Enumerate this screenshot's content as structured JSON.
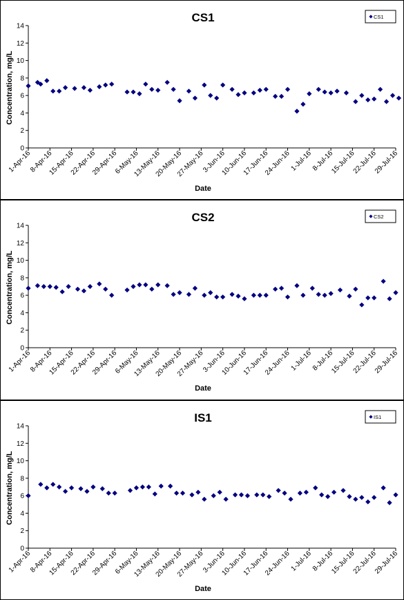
{
  "chart_data": [
    {
      "type": "scatter",
      "title": "CS1",
      "xlabel": "Date",
      "ylabel": "Concentration, mg/L",
      "ylim": [
        0,
        14
      ],
      "yticks": [
        0,
        2,
        4,
        6,
        8,
        10,
        12,
        14
      ],
      "xlim": [
        "1-Apr-16",
        "29-Jul-16"
      ],
      "xtick_labels": [
        "1-Apr-16",
        "8-Apr-16",
        "15-Apr-16",
        "22-Apr-16",
        "29-Apr-16",
        "6-May-16",
        "13-May-16",
        "20-May-16",
        "27-May-16",
        "3-Jun-16",
        "10-Jun-16",
        "17-Jun-16",
        "24-Jun-16",
        "1-Jul-16",
        "8-Jul-16",
        "15-Jul-16",
        "22-Jul-16",
        "29-Jul-16"
      ],
      "grid": false,
      "legend_position": "top-right",
      "series": [
        {
          "name": "CS1",
          "marker": "diamond",
          "color": "#000080",
          "x": [
            "2016-04-01",
            "2016-04-04",
            "2016-04-05",
            "2016-04-07",
            "2016-04-09",
            "2016-04-11",
            "2016-04-13",
            "2016-04-16",
            "2016-04-19",
            "2016-04-21",
            "2016-04-24",
            "2016-04-26",
            "2016-04-28",
            "2016-05-03",
            "2016-05-05",
            "2016-05-07",
            "2016-05-09",
            "2016-05-11",
            "2016-05-13",
            "2016-05-16",
            "2016-05-18",
            "2016-05-20",
            "2016-05-23",
            "2016-05-25",
            "2016-05-28",
            "2016-05-30",
            "2016-06-01",
            "2016-06-03",
            "2016-06-06",
            "2016-06-08",
            "2016-06-10",
            "2016-06-13",
            "2016-06-15",
            "2016-06-17",
            "2016-06-20",
            "2016-06-22",
            "2016-06-24",
            "2016-06-27",
            "2016-06-29",
            "2016-07-01",
            "2016-07-04",
            "2016-07-06",
            "2016-07-08",
            "2016-07-10",
            "2016-07-13",
            "2016-07-16",
            "2016-07-18",
            "2016-07-20",
            "2016-07-22",
            "2016-07-24",
            "2016-07-26",
            "2016-07-28",
            "2016-07-30"
          ],
          "y": [
            7.1,
            7.5,
            7.3,
            7.7,
            6.5,
            6.5,
            6.9,
            6.8,
            6.9,
            6.6,
            7.0,
            7.2,
            7.3,
            6.4,
            6.4,
            6.2,
            7.3,
            6.7,
            6.6,
            7.5,
            6.7,
            5.4,
            6.5,
            5.7,
            7.2,
            6.0,
            5.7,
            7.2,
            6.7,
            6.1,
            6.3,
            6.3,
            6.6,
            6.7,
            5.9,
            5.9,
            6.7,
            4.2,
            5.0,
            6.2,
            6.7,
            6.4,
            6.3,
            6.5,
            6.3,
            5.3,
            6.0,
            5.5,
            5.6,
            6.7,
            5.3,
            6.0,
            5.7
          ]
        }
      ]
    },
    {
      "type": "scatter",
      "title": "CS2",
      "xlabel": "Date",
      "ylabel": "Concentration, mg/L",
      "ylim": [
        0,
        14
      ],
      "yticks": [
        0,
        2,
        4,
        6,
        8,
        10,
        12,
        14
      ],
      "xlim": [
        "1-Apr-16",
        "29-Jul-16"
      ],
      "xtick_labels": [
        "1-Apr-16",
        "8-Apr-16",
        "15-Apr-16",
        "22-Apr-16",
        "29-Apr-16",
        "6-May-16",
        "13-May-16",
        "20-May-16",
        "27-May-16",
        "3-Jun-16",
        "10-Jun-16",
        "17-Jun-16",
        "24-Jun-16",
        "1-Jul-16",
        "8-Jul-16",
        "15-Jul-16",
        "22-Jul-16",
        "29-Jul-16"
      ],
      "grid": false,
      "legend_position": "top-right",
      "series": [
        {
          "name": "CS2",
          "marker": "diamond",
          "color": "#000080",
          "x": [
            "2016-04-01",
            "2016-04-04",
            "2016-04-06",
            "2016-04-08",
            "2016-04-10",
            "2016-04-12",
            "2016-04-14",
            "2016-04-17",
            "2016-04-19",
            "2016-04-21",
            "2016-04-24",
            "2016-04-26",
            "2016-04-28",
            "2016-05-03",
            "2016-05-05",
            "2016-05-07",
            "2016-05-09",
            "2016-05-11",
            "2016-05-13",
            "2016-05-16",
            "2016-05-18",
            "2016-05-20",
            "2016-05-23",
            "2016-05-25",
            "2016-05-28",
            "2016-05-30",
            "2016-06-01",
            "2016-06-03",
            "2016-06-06",
            "2016-06-08",
            "2016-06-10",
            "2016-06-13",
            "2016-06-15",
            "2016-06-17",
            "2016-06-20",
            "2016-06-22",
            "2016-06-24",
            "2016-06-27",
            "2016-06-29",
            "2016-07-02",
            "2016-07-04",
            "2016-07-06",
            "2016-07-08",
            "2016-07-11",
            "2016-07-14",
            "2016-07-16",
            "2016-07-18",
            "2016-07-20",
            "2016-07-22",
            "2016-07-25",
            "2016-07-27",
            "2016-07-29"
          ],
          "y": [
            6.8,
            7.1,
            7.0,
            7.0,
            6.9,
            6.4,
            7.0,
            6.7,
            6.5,
            7.0,
            7.3,
            6.7,
            6.0,
            6.6,
            7.0,
            7.2,
            7.2,
            6.7,
            7.2,
            7.1,
            6.1,
            6.3,
            6.1,
            6.8,
            6.0,
            6.3,
            5.8,
            5.8,
            6.1,
            5.9,
            5.6,
            6.0,
            6.0,
            6.0,
            6.7,
            6.8,
            5.8,
            7.1,
            6.0,
            6.8,
            6.1,
            6.0,
            6.2,
            6.6,
            5.9,
            6.7,
            4.9,
            5.7,
            5.7,
            7.6,
            5.6,
            6.3
          ]
        }
      ]
    },
    {
      "type": "scatter",
      "title": "IS1",
      "xlabel": "Date",
      "ylabel": "Concentration, mg/L",
      "ylim": [
        0,
        14
      ],
      "yticks": [
        0,
        2,
        4,
        6,
        8,
        10,
        12,
        14
      ],
      "xlim": [
        "1-Apr-16",
        "29-Jul-16"
      ],
      "xtick_labels": [
        "1-Apr-16",
        "8-Apr-16",
        "15-Apr-16",
        "22-Apr-16",
        "29-Apr-16",
        "6-May-16",
        "13-May-16",
        "20-May-16",
        "27-May-16",
        "3-Jun-16",
        "10-Jun-16",
        "17-Jun-16",
        "24-Jun-16",
        "1-Jul-16",
        "8-Jul-16",
        "15-Jul-16",
        "22-Jul-16",
        "29-Jul-16"
      ],
      "grid": false,
      "legend_position": "top-right",
      "series": [
        {
          "name": "IS1",
          "marker": "diamond",
          "color": "#000080",
          "x": [
            "2016-04-01",
            "2016-04-05",
            "2016-04-07",
            "2016-04-09",
            "2016-04-11",
            "2016-04-13",
            "2016-04-15",
            "2016-04-18",
            "2016-04-20",
            "2016-04-22",
            "2016-04-25",
            "2016-04-27",
            "2016-04-29",
            "2016-05-04",
            "2016-05-06",
            "2016-05-08",
            "2016-05-10",
            "2016-05-12",
            "2016-05-14",
            "2016-05-17",
            "2016-05-19",
            "2016-05-21",
            "2016-05-24",
            "2016-05-26",
            "2016-05-28",
            "2016-05-31",
            "2016-06-02",
            "2016-06-04",
            "2016-06-07",
            "2016-06-09",
            "2016-06-11",
            "2016-06-14",
            "2016-06-16",
            "2016-06-18",
            "2016-06-21",
            "2016-06-23",
            "2016-06-25",
            "2016-06-28",
            "2016-06-30",
            "2016-07-03",
            "2016-07-05",
            "2016-07-07",
            "2016-07-09",
            "2016-07-12",
            "2016-07-14",
            "2016-07-16",
            "2016-07-18",
            "2016-07-20",
            "2016-07-22",
            "2016-07-25",
            "2016-07-27",
            "2016-07-29"
          ],
          "y": [
            6.0,
            7.3,
            6.9,
            7.3,
            7.0,
            6.5,
            6.9,
            6.8,
            6.5,
            7.0,
            6.8,
            6.3,
            6.3,
            6.6,
            6.9,
            7.0,
            7.0,
            6.2,
            7.1,
            7.1,
            6.3,
            6.3,
            6.1,
            6.4,
            5.6,
            6.0,
            6.4,
            5.6,
            6.1,
            6.1,
            6.0,
            6.1,
            6.1,
            5.9,
            6.6,
            6.3,
            5.6,
            6.3,
            6.4,
            6.9,
            6.1,
            5.9,
            6.4,
            6.6,
            5.9,
            5.6,
            5.8,
            5.3,
            5.8,
            6.9,
            5.2,
            6.1
          ]
        }
      ]
    }
  ]
}
